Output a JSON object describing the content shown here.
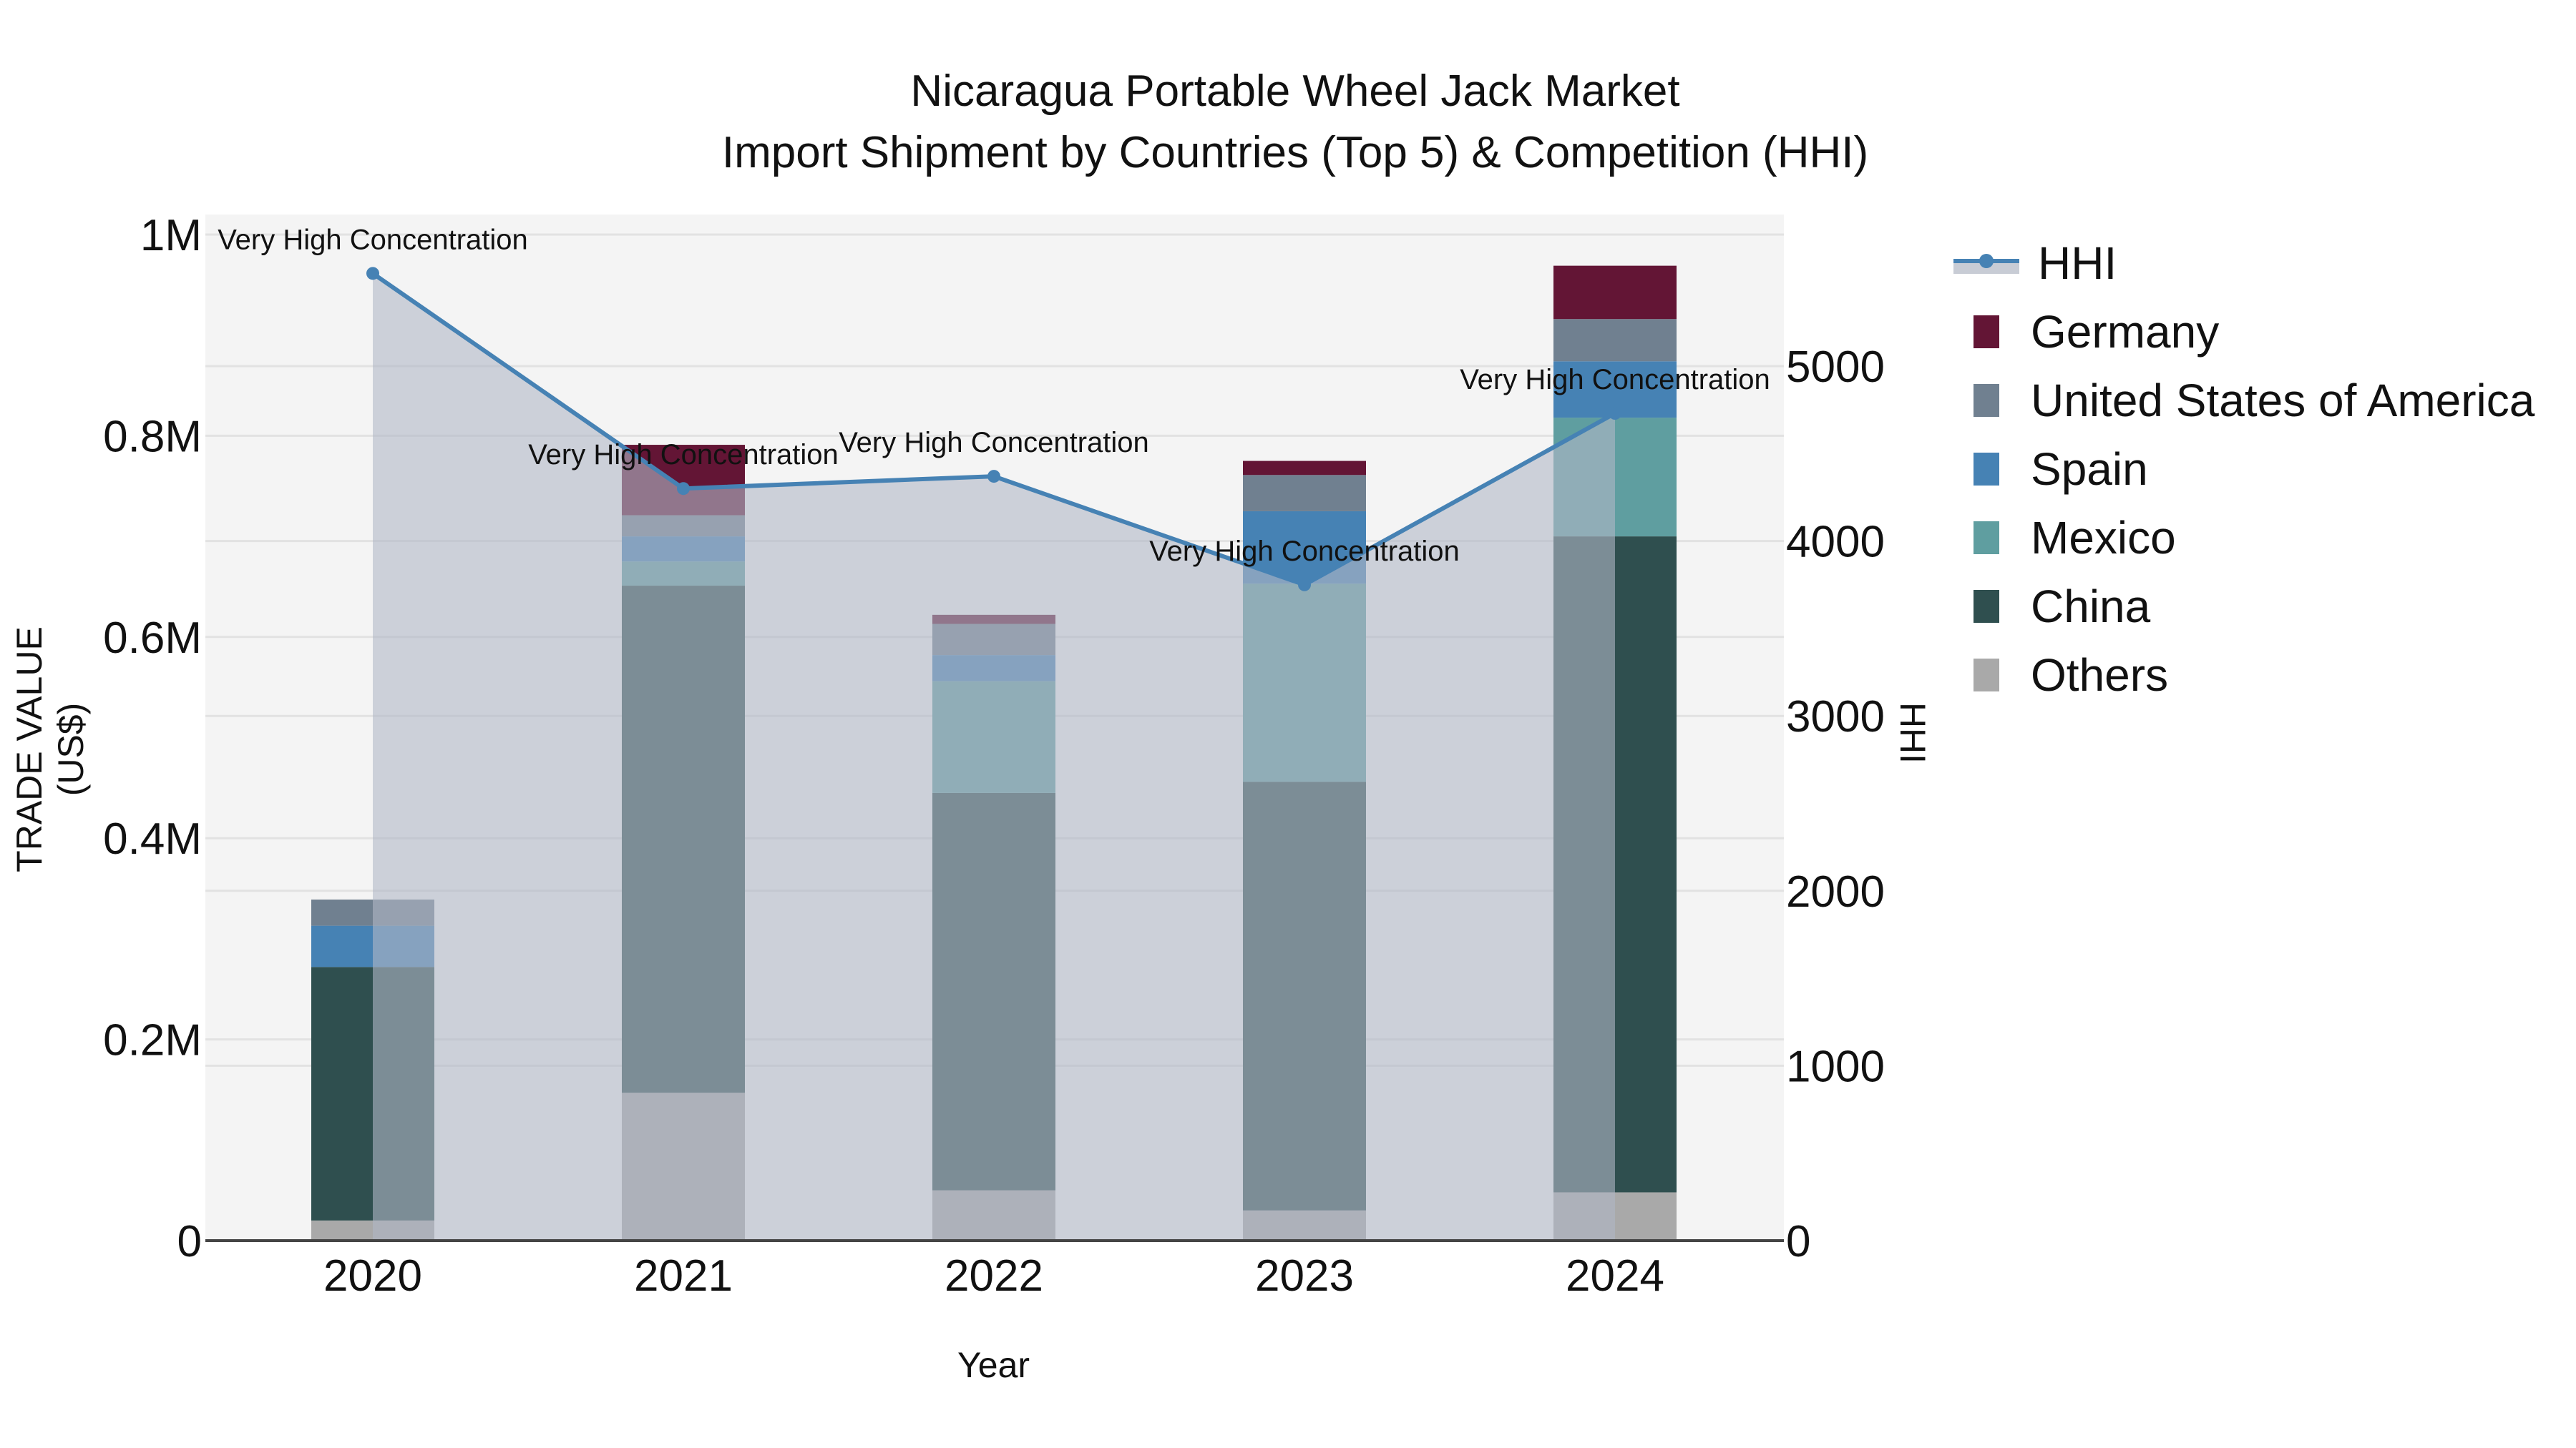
{
  "title": {
    "line1": "Nicaragua Portable Wheel Jack Market",
    "line2": "Import Shipment by Countries (Top 5) & Competition (HHI)"
  },
  "axes": {
    "x_title": "Year",
    "y_left_title": "TRADE VALUE (US$)",
    "y_right_title": "HHI",
    "y_left_ticks": [
      "0",
      "0.2M",
      "0.4M",
      "0.6M",
      "0.8M",
      "1M"
    ],
    "y_right_ticks": [
      "0",
      "1000",
      "2000",
      "3000",
      "4000",
      "5000"
    ],
    "x_ticks": [
      "2020",
      "2021",
      "2022",
      "2023",
      "2024"
    ]
  },
  "legend": [
    {
      "label": "HHI",
      "type": "line",
      "color": "#4682b4"
    },
    {
      "label": "Germany",
      "type": "bar",
      "color": "#631535"
    },
    {
      "label": "United States of America",
      "type": "bar",
      "color": "#708090"
    },
    {
      "label": "Spain",
      "type": "bar",
      "color": "#4682b4"
    },
    {
      "label": "Mexico",
      "type": "bar",
      "color": "#5f9ea0"
    },
    {
      "label": "China",
      "type": "bar",
      "color": "#2f4f4f"
    },
    {
      "label": "Others",
      "type": "bar",
      "color": "#a9a9a9"
    }
  ],
  "colors": {
    "plot_bg": "#f4f4f4",
    "grid": "#e2e2e2",
    "hhi_line": "#4682b4",
    "hhi_fill": "rgba(176,184,198,0.6)"
  },
  "chart_data": {
    "type": "bar",
    "subtype": "stacked bar + line (dual axis)",
    "title": "Nicaragua Portable Wheel Jack Market - Import Shipment by Countries (Top 5) & Competition (HHI)",
    "xlabel": "Year",
    "ylabel": "TRADE VALUE (US$)",
    "y2label": "HHI",
    "categories": [
      "2020",
      "2021",
      "2022",
      "2023",
      "2024"
    ],
    "ylim": [
      0,
      1000000
    ],
    "y2lim": [
      0,
      5700
    ],
    "grid": true,
    "legend_position": "right",
    "series": [
      {
        "name": "Others",
        "axis": "left",
        "values": [
          20000,
          147000,
          50000,
          30000,
          48000
        ]
      },
      {
        "name": "China",
        "axis": "left",
        "values": [
          252000,
          504000,
          395000,
          426000,
          652000
        ]
      },
      {
        "name": "Mexico",
        "axis": "left",
        "values": [
          0,
          24000,
          111000,
          197000,
          118000
        ]
      },
      {
        "name": "Spain",
        "axis": "left",
        "values": [
          41000,
          25000,
          26000,
          72000,
          56000
        ]
      },
      {
        "name": "United States of America",
        "axis": "left",
        "values": [
          26000,
          21000,
          31000,
          36000,
          42000
        ]
      },
      {
        "name": "Germany",
        "axis": "left",
        "values": [
          0,
          70000,
          9000,
          14000,
          53000
        ]
      },
      {
        "name": "HHI",
        "axis": "right",
        "type": "line",
        "values": [
          5530,
          4300,
          4370,
          3750,
          4730
        ]
      }
    ],
    "annotations": [
      {
        "x": "2020",
        "text": "Very High Concentration"
      },
      {
        "x": "2021",
        "text": "Very High Concentration"
      },
      {
        "x": "2022",
        "text": "Very High Concentration"
      },
      {
        "x": "2023",
        "text": "Very High Concentration"
      },
      {
        "x": "2024",
        "text": "Very High Concentration"
      }
    ]
  }
}
